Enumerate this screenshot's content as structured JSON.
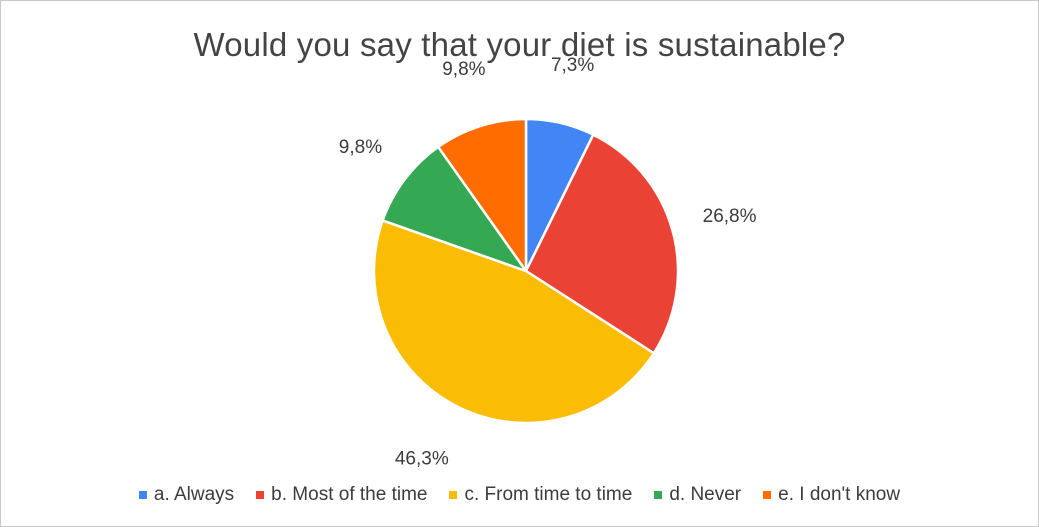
{
  "chart_data": {
    "type": "pie",
    "title": "Would you say that your diet is sustainable?",
    "categories": [
      "a. Always",
      "b. Most of the time",
      "c. From time to time",
      "d. Never",
      "e. I don't know"
    ],
    "values": [
      7.3,
      26.8,
      46.3,
      9.8,
      9.8
    ],
    "labels": [
      "7,3%",
      "26,8%",
      "46,3%",
      "9,8%",
      "9,8%"
    ],
    "colors": [
      "#4285f4",
      "#ea4335",
      "#fbbc04",
      "#34a853",
      "#ff6d01"
    ],
    "legend_position": "bottom",
    "start_angle": "top",
    "direction": "clockwise"
  }
}
